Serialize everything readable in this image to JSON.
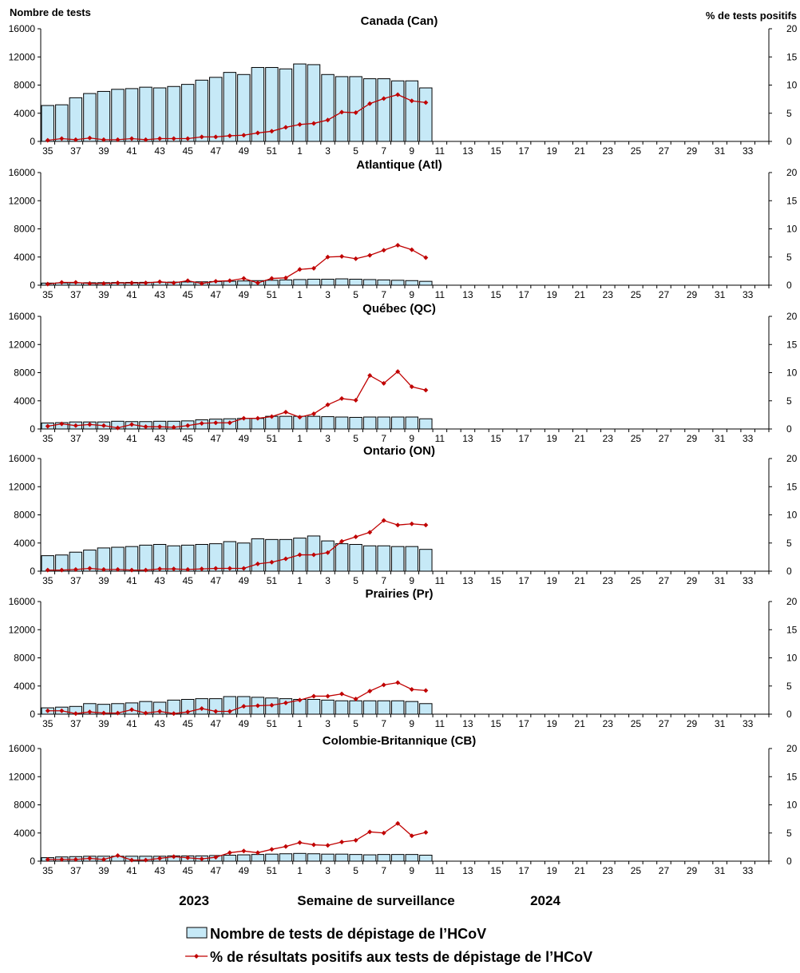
{
  "chart_data": {
    "type": "bar+line",
    "y_left_title": "Nombre de tests",
    "y_right_title": "% de tests positifs",
    "y_left_ticks": [
      0,
      4000,
      8000,
      12000,
      16000
    ],
    "y_right_ticks": [
      0,
      5,
      10,
      15,
      20
    ],
    "ylim_left": [
      0,
      16000
    ],
    "ylim_right": [
      0,
      20
    ],
    "weeks": [
      35,
      36,
      37,
      38,
      39,
      40,
      41,
      42,
      43,
      44,
      45,
      46,
      47,
      48,
      49,
      50,
      51,
      52,
      1,
      2,
      3,
      4,
      5,
      6,
      7,
      8,
      9,
      10,
      11,
      12,
      13,
      14,
      15,
      16,
      17,
      18,
      19,
      20,
      21,
      22,
      23,
      24,
      25,
      26,
      27,
      28,
      29,
      30,
      31,
      32,
      33,
      34
    ],
    "week_labels": [
      "35",
      "37",
      "39",
      "41",
      "43",
      "45",
      "47",
      "49",
      "51",
      "1",
      "3",
      "5",
      "7",
      "9",
      "11",
      "13",
      "15",
      "17",
      "19",
      "21",
      "23",
      "25",
      "27",
      "29",
      "31",
      "33"
    ],
    "xlabel": "Semaine de surveillance",
    "year_left": "2023",
    "year_right": "2024",
    "legend": {
      "bars": "Nombre de tests de dépistage de l’HCoV",
      "line": "% de résultats positifs aux tests de dépistage de l’HCoV"
    },
    "colors": {
      "bar_fill": "#c6e9f7",
      "bar_stroke": "#000000",
      "line": "#c00000"
    },
    "panels": [
      {
        "title": "Canada (Can)",
        "tests": [
          5100,
          5200,
          6200,
          6800,
          7100,
          7400,
          7500,
          7700,
          7600,
          7800,
          8100,
          8700,
          9100,
          9800,
          9500,
          10500,
          10500,
          10300,
          11000,
          10900,
          9500,
          9200,
          9200,
          8900,
          8900,
          8600,
          8600,
          7600
        ],
        "pct_positive": [
          0.2,
          0.5,
          0.3,
          0.6,
          0.3,
          0.3,
          0.5,
          0.3,
          0.5,
          0.5,
          0.5,
          0.8,
          0.8,
          1.0,
          1.1,
          1.5,
          1.8,
          2.5,
          3.0,
          3.2,
          3.8,
          5.2,
          5.1,
          6.7,
          7.6,
          8.3,
          7.2,
          6.9
        ]
      },
      {
        "title": "Atlantique (Atl)",
        "tests": [
          300,
          320,
          330,
          350,
          360,
          380,
          400,
          410,
          420,
          440,
          460,
          480,
          520,
          560,
          600,
          650,
          700,
          750,
          800,
          850,
          850,
          900,
          850,
          800,
          750,
          700,
          650,
          550
        ],
        "pct_positive": [
          0.2,
          0.5,
          0.5,
          0.3,
          0.3,
          0.4,
          0.4,
          0.4,
          0.6,
          0.4,
          0.8,
          0.3,
          0.7,
          0.8,
          1.2,
          0.4,
          1.2,
          1.3,
          2.8,
          3.0,
          5.0,
          5.1,
          4.7,
          5.3,
          6.2,
          7.1,
          6.3,
          4.9
        ]
      },
      {
        "title": "Québec (QC)",
        "tests": [
          850,
          900,
          1000,
          1000,
          1000,
          1100,
          1050,
          1050,
          1100,
          1100,
          1150,
          1300,
          1400,
          1450,
          1500,
          1500,
          1800,
          1800,
          1800,
          1800,
          1750,
          1700,
          1650,
          1700,
          1700,
          1700,
          1700,
          1450
        ],
        "pct_positive": [
          0.5,
          0.9,
          0.6,
          0.8,
          0.6,
          0.2,
          0.8,
          0.4,
          0.4,
          0.3,
          0.6,
          1.0,
          1.1,
          1.1,
          1.9,
          1.9,
          2.2,
          3.0,
          2.1,
          2.7,
          4.3,
          5.4,
          5.1,
          9.5,
          8.1,
          10.2,
          7.5,
          6.9
        ]
      },
      {
        "title": "Ontario (ON)",
        "tests": [
          2200,
          2300,
          2700,
          3000,
          3300,
          3400,
          3500,
          3700,
          3800,
          3600,
          3700,
          3800,
          3900,
          4200,
          4000,
          4600,
          4500,
          4500,
          4700,
          5000,
          4300,
          3900,
          3800,
          3600,
          3600,
          3500,
          3500,
          3100
        ],
        "pct_positive": [
          0.2,
          0.2,
          0.3,
          0.5,
          0.3,
          0.3,
          0.2,
          0.2,
          0.4,
          0.4,
          0.3,
          0.4,
          0.5,
          0.5,
          0.5,
          1.3,
          1.6,
          2.2,
          2.9,
          2.9,
          3.3,
          5.3,
          6.1,
          6.9,
          9.0,
          8.2,
          8.4,
          8.2
        ]
      },
      {
        "title": "Prairies (Pr)",
        "tests": [
          900,
          1000,
          1100,
          1500,
          1400,
          1500,
          1600,
          1800,
          1700,
          2000,
          2100,
          2200,
          2200,
          2500,
          2500,
          2400,
          2300,
          2200,
          2100,
          2100,
          2000,
          1900,
          1900,
          1900,
          1900,
          1900,
          1800,
          1500
        ],
        "pct_positive": [
          0.6,
          0.6,
          0.1,
          0.4,
          0.2,
          0.2,
          0.8,
          0.2,
          0.5,
          0.1,
          0.4,
          1.0,
          0.5,
          0.5,
          1.4,
          1.5,
          1.6,
          2.0,
          2.5,
          3.2,
          3.2,
          3.6,
          2.7,
          4.1,
          5.2,
          5.6,
          4.4,
          4.2
        ]
      },
      {
        "title": "Colombie-Britannique (CB)",
        "tests": [
          500,
          600,
          650,
          700,
          700,
          700,
          700,
          700,
          700,
          750,
          750,
          750,
          800,
          850,
          900,
          950,
          1000,
          1050,
          1100,
          1050,
          1000,
          1000,
          950,
          900,
          950,
          950,
          950,
          850
        ],
        "pct_positive": [
          0.3,
          0.3,
          0.3,
          0.5,
          0.3,
          1.0,
          0.2,
          0.2,
          0.5,
          0.8,
          0.6,
          0.4,
          0.7,
          1.5,
          1.8,
          1.5,
          2.1,
          2.6,
          3.3,
          2.9,
          2.8,
          3.4,
          3.7,
          5.2,
          5.0,
          6.7,
          4.5,
          5.1
        ]
      }
    ]
  }
}
